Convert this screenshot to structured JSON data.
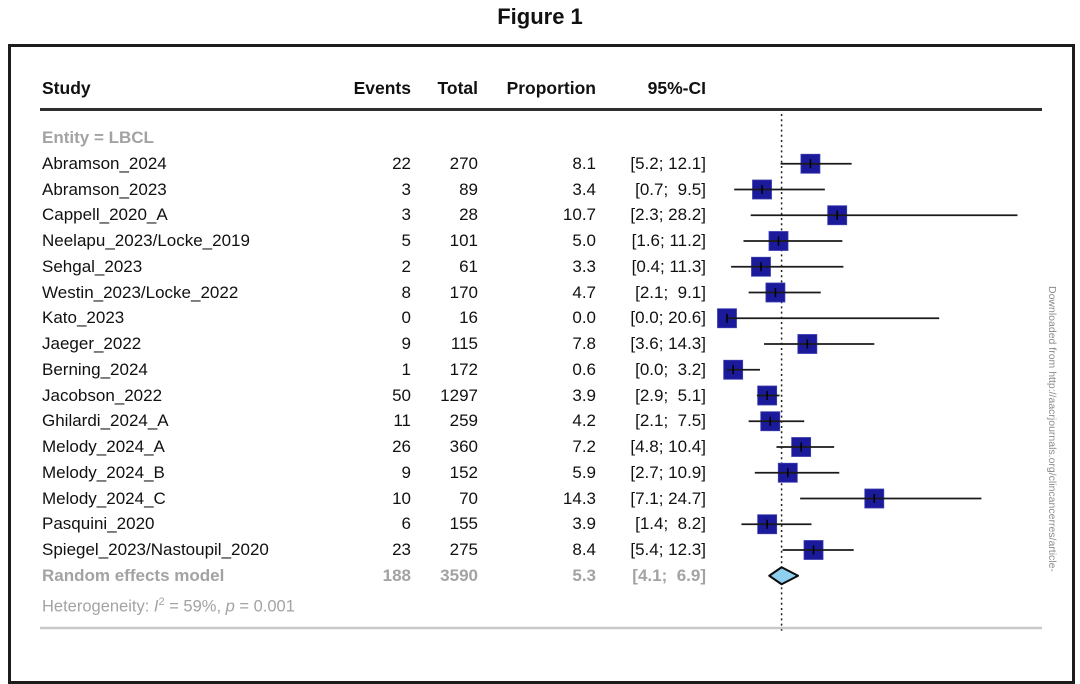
{
  "figure": {
    "title": "Figure 1"
  },
  "sidebar_text": "Downloaded from http://aacrjournals.org/clincancerres/article-",
  "chart_data": {
    "type": "forest",
    "title": "Figure 1",
    "effect_measure": "Proportion",
    "x_unit": "percent",
    "x_visible_range": [
      0,
      28.2
    ],
    "reference_line_at": 5.3,
    "grid": false,
    "columns": [
      "Study",
      "Events",
      "Total",
      "Proportion",
      "95%-CI"
    ],
    "group_label": "Entity = LBCL",
    "studies": [
      {
        "label": "Abramson_2024",
        "events": "22",
        "total": "270",
        "proportion": 8.1,
        "ci_lo": 5.2,
        "ci_hi": 12.1,
        "prop_text": "8.1",
        "ci_text": "[5.2; 12.1]"
      },
      {
        "label": "Abramson_2023",
        "events": "3",
        "total": "89",
        "proportion": 3.4,
        "ci_lo": 0.7,
        "ci_hi": 9.5,
        "prop_text": "3.4",
        "ci_text": "[0.7;  9.5]"
      },
      {
        "label": "Cappell_2020_A",
        "events": "3",
        "total": "28",
        "proportion": 10.7,
        "ci_lo": 2.3,
        "ci_hi": 28.2,
        "prop_text": "10.7",
        "ci_text": "[2.3; 28.2]"
      },
      {
        "label": "Neelapu_2023/Locke_2019",
        "events": "5",
        "total": "101",
        "proportion": 5.0,
        "ci_lo": 1.6,
        "ci_hi": 11.2,
        "prop_text": "5.0",
        "ci_text": "[1.6; 11.2]"
      },
      {
        "label": "Sehgal_2023",
        "events": "2",
        "total": "61",
        "proportion": 3.3,
        "ci_lo": 0.4,
        "ci_hi": 11.3,
        "prop_text": "3.3",
        "ci_text": "[0.4; 11.3]"
      },
      {
        "label": "Westin_2023/Locke_2022",
        "events": "8",
        "total": "170",
        "proportion": 4.7,
        "ci_lo": 2.1,
        "ci_hi": 9.1,
        "prop_text": "4.7",
        "ci_text": "[2.1;  9.1]"
      },
      {
        "label": "Kato_2023",
        "events": "0",
        "total": "16",
        "proportion": 0.0,
        "ci_lo": 0.0,
        "ci_hi": 20.6,
        "prop_text": "0.0",
        "ci_text": "[0.0; 20.6]"
      },
      {
        "label": "Jaeger_2022",
        "events": "9",
        "total": "115",
        "proportion": 7.8,
        "ci_lo": 3.6,
        "ci_hi": 14.3,
        "prop_text": "7.8",
        "ci_text": "[3.6; 14.3]"
      },
      {
        "label": "Berning_2024",
        "events": "1",
        "total": "172",
        "proportion": 0.6,
        "ci_lo": 0.0,
        "ci_hi": 3.2,
        "prop_text": "0.6",
        "ci_text": "[0.0;  3.2]"
      },
      {
        "label": "Jacobson_2022",
        "events": "50",
        "total": "1297",
        "proportion": 3.9,
        "ci_lo": 2.9,
        "ci_hi": 5.1,
        "prop_text": "3.9",
        "ci_text": "[2.9;  5.1]"
      },
      {
        "label": "Ghilardi_2024_A",
        "events": "11",
        "total": "259",
        "proportion": 4.2,
        "ci_lo": 2.1,
        "ci_hi": 7.5,
        "prop_text": "4.2",
        "ci_text": "[2.1;  7.5]"
      },
      {
        "label": "Melody_2024_A",
        "events": "26",
        "total": "360",
        "proportion": 7.2,
        "ci_lo": 4.8,
        "ci_hi": 10.4,
        "prop_text": "7.2",
        "ci_text": "[4.8; 10.4]"
      },
      {
        "label": "Melody_2024_B",
        "events": "9",
        "total": "152",
        "proportion": 5.9,
        "ci_lo": 2.7,
        "ci_hi": 10.9,
        "prop_text": "5.9",
        "ci_text": "[2.7; 10.9]"
      },
      {
        "label": "Melody_2024_C",
        "events": "10",
        "total": "70",
        "proportion": 14.3,
        "ci_lo": 7.1,
        "ci_hi": 24.7,
        "prop_text": "14.3",
        "ci_text": "[7.1; 24.7]"
      },
      {
        "label": "Pasquini_2020",
        "events": "6",
        "total": "155",
        "proportion": 3.9,
        "ci_lo": 1.4,
        "ci_hi": 8.2,
        "prop_text": "3.9",
        "ci_text": "[1.4;  8.2]"
      },
      {
        "label": "Spiegel_2023/Nastoupil_2020",
        "events": "23",
        "total": "275",
        "proportion": 8.4,
        "ci_lo": 5.4,
        "ci_hi": 12.3,
        "prop_text": "8.4",
        "ci_text": "[5.4; 12.3]"
      }
    ],
    "summary": {
      "label": "Random effects model",
      "events": "188",
      "total": "3590",
      "proportion": 5.3,
      "ci_lo": 4.1,
      "ci_hi": 6.9,
      "prop_text": "5.3",
      "ci_text": "[4.1;  6.9]"
    },
    "heterogeneity": {
      "prefix": "Heterogeneity: ",
      "stat_symbol": "I",
      "stat_sup": "2",
      "mid": " = 59%, ",
      "p_symbol": "p",
      "suffix": " = 0.001"
    },
    "colors": {
      "square": "#1a1a9a",
      "square_edge": "#3b3bb0",
      "diamond_fill": "#8fd0f0",
      "diamond_edge": "#0d0d0d",
      "ci_line": "#1a1a1a",
      "reference_line": "#222222",
      "gray_text": "#a3a3a3",
      "baseline": "#c9c9c9"
    }
  }
}
